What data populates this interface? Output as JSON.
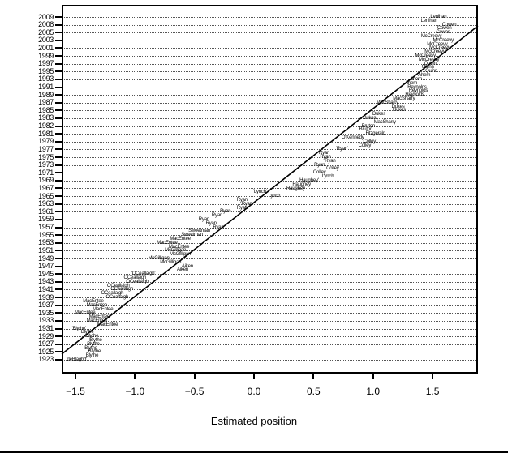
{
  "chart_data": {
    "type": "scatter",
    "title": "",
    "xlabel": "Estimated position",
    "ylabel": "",
    "x_range": [
      -1.65,
      1.9
    ],
    "grid": "dotted-horizontal",
    "x_tick_values": [
      -1.5,
      -1.0,
      -0.5,
      0.0,
      0.5,
      1.0,
      1.5
    ],
    "x_tick_labels": [
      "−1.5",
      "−1.0",
      "−0.5",
      "0.0",
      "0.5",
      "1.0",
      "1.5"
    ],
    "y_axis_years_top_to_bottom": [
      "2009",
      "2008",
      "2005",
      "2003",
      "2001",
      "1999",
      "1997",
      "1995",
      "1993",
      "1991",
      "1989",
      "1987",
      "1985",
      "1983",
      "1982",
      "1981",
      "1979",
      "1977",
      "1975",
      "1973",
      "1971",
      "1969",
      "1967",
      "1965",
      "1963",
      "1961",
      "1959",
      "1957",
      "1955",
      "1953",
      "1951",
      "1949",
      "1947",
      "1945",
      "1943",
      "1941",
      "1939",
      "1937",
      "1935",
      "1933",
      "1931",
      "1929",
      "1927",
      "1925",
      "1923"
    ],
    "point_marker": "text-label-only",
    "points_bottom_to_top": [
      {
        "row": 0,
        "year": 1923,
        "label": "'deBlaghd'",
        "x": -1.49
      },
      {
        "row": 1,
        "year": 1924,
        "label": "Blythe",
        "x": -1.36
      },
      {
        "row": 2,
        "year": 1925,
        "label": "Blythe",
        "x": -1.34
      },
      {
        "row": 3,
        "year": 1926,
        "label": "Blythe",
        "x": -1.37
      },
      {
        "row": 4,
        "year": 1927,
        "label": "Blythe",
        "x": -1.35
      },
      {
        "row": 5,
        "year": 1928,
        "label": "Blythe",
        "x": -1.33
      },
      {
        "row": 6,
        "year": 1929,
        "label": "Blythe",
        "x": -1.36
      },
      {
        "row": 7,
        "year": 1930,
        "label": "Blythe",
        "x": -1.4
      },
      {
        "row": 8,
        "year": 1931,
        "label": "'Blythe'",
        "x": -1.47
      },
      {
        "row": 9,
        "year": 1932,
        "label": "MacEntee",
        "x": -1.23
      },
      {
        "row": 10,
        "year": 1933,
        "label": "MacEntee",
        "x": -1.32
      },
      {
        "row": 11,
        "year": 1934,
        "label": "MacEntee",
        "x": -1.3
      },
      {
        "row": 12,
        "year": 1935,
        "label": "MacEntee",
        "x": -1.42
      },
      {
        "row": 13,
        "year": 1936,
        "label": "MacEntee",
        "x": -1.27
      },
      {
        "row": 14,
        "year": 1937,
        "label": "MacEntee",
        "x": -1.32
      },
      {
        "row": 15,
        "year": 1938,
        "label": "MacEntee",
        "x": -1.35
      },
      {
        "row": 16,
        "year": 1939,
        "label": "OCeallaigh",
        "x": -1.15
      },
      {
        "row": 17,
        "year": 1940,
        "label": "OCeallaigh",
        "x": -1.19
      },
      {
        "row": 18,
        "year": 1941,
        "label": "OCeallaigh",
        "x": -1.11
      },
      {
        "row": 19,
        "year": 1942,
        "label": "OCeallaigh",
        "x": -1.14
      },
      {
        "row": 20,
        "year": 1943,
        "label": "OCeallaigh",
        "x": -0.98
      },
      {
        "row": 21,
        "year": 1944,
        "label": "OCeallaigh",
        "x": -1.0
      },
      {
        "row": 22,
        "year": 1945,
        "label": "'OCeallaigh'",
        "x": -0.93
      },
      {
        "row": 23,
        "year": 1946,
        "label": "Aiken",
        "x": -0.6
      },
      {
        "row": 24,
        "year": 1947,
        "label": "Aiken",
        "x": -0.56
      },
      {
        "row": 25,
        "year": 1948,
        "label": "McGilligan",
        "x": -0.7
      },
      {
        "row": 26,
        "year": 1949,
        "label": "McGilligan",
        "x": -0.8
      },
      {
        "row": 27,
        "year": 1950,
        "label": "McGilligan",
        "x": -0.62
      },
      {
        "row": 28,
        "year": 1951,
        "label": "McGilligan",
        "x": -0.66
      },
      {
        "row": 29,
        "year": 1952,
        "label": "MacEntee",
        "x": -0.63
      },
      {
        "row": 30,
        "year": 1953,
        "label": "MacEntee",
        "x": -0.73
      },
      {
        "row": 31,
        "year": 1954,
        "label": "MacEntee",
        "x": -0.62
      },
      {
        "row": 32,
        "year": 1955,
        "label": "Sweetman",
        "x": -0.52
      },
      {
        "row": 33,
        "year": 1956,
        "label": "'Sweetman'",
        "x": -0.46
      },
      {
        "row": 34,
        "year": 1957,
        "label": "Ryan",
        "x": -0.3
      },
      {
        "row": 35,
        "year": 1958,
        "label": "Ryan",
        "x": -0.36
      },
      {
        "row": 36,
        "year": 1959,
        "label": "Ryan",
        "x": -0.42
      },
      {
        "row": 37,
        "year": 1960,
        "label": "Ryan",
        "x": -0.31
      },
      {
        "row": 38,
        "year": 1961,
        "label": "Ryan",
        "x": -0.24
      },
      {
        "row": 39,
        "year": 1962,
        "label": "Ryan",
        "x": -0.1
      },
      {
        "row": 40,
        "year": 1963,
        "label": "Ryan",
        "x": -0.06
      },
      {
        "row": 41,
        "year": 1964,
        "label": "Ryan",
        "x": -0.1
      },
      {
        "row": 42,
        "year": 1965,
        "label": "Lynch",
        "x": 0.17
      },
      {
        "row": 43,
        "year": 1966,
        "label": "'Lynch'",
        "x": 0.05
      },
      {
        "row": 44,
        "year": 1967,
        "label": "Haughey",
        "x": 0.35
      },
      {
        "row": 45,
        "year": 1968,
        "label": "Haughey",
        "x": 0.4
      },
      {
        "row": 46,
        "year": 1969,
        "label": "'Haughey'",
        "x": 0.46
      },
      {
        "row": 47,
        "year": 1970,
        "label": "Lynch",
        "x": 0.62
      },
      {
        "row": 48,
        "year": 1971,
        "label": "Colley",
        "x": 0.55
      },
      {
        "row": 49,
        "year": 1972,
        "label": "Colley",
        "x": 0.66
      },
      {
        "row": 50,
        "year": 1973,
        "label": "Ryan",
        "x": 0.55
      },
      {
        "row": 51,
        "year": 1974,
        "label": "Ryan",
        "x": 0.64
      },
      {
        "row": 52,
        "year": 1975,
        "label": "Ryan",
        "x": 0.6
      },
      {
        "row": 53,
        "year": 1976,
        "label": "Ryan",
        "x": 0.59
      },
      {
        "row": 54,
        "year": 1977,
        "label": "'Ryan'",
        "x": 0.74
      },
      {
        "row": 55,
        "year": 1978,
        "label": "Colley",
        "x": 0.93
      },
      {
        "row": 56,
        "year": 1979,
        "label": "Colley",
        "x": 0.97
      },
      {
        "row": 57,
        "year": 1980,
        "label": "O'Kennedy",
        "x": 0.83
      },
      {
        "row": 58,
        "year": 1981,
        "label": "Fitzgerald",
        "x": 1.02
      },
      {
        "row": 59,
        "year": 1981,
        "label": "Bruton",
        "x": 0.94
      },
      {
        "row": 60,
        "year": 1982,
        "label": "Bruton",
        "x": 0.96
      },
      {
        "row": 61,
        "year": 1982,
        "label": "MacSharry",
        "x": 1.1
      },
      {
        "row": 62,
        "year": 1983,
        "label": "Dukes",
        "x": 0.97
      },
      {
        "row": 63,
        "year": 1984,
        "label": "Dukes",
        "x": 1.05
      },
      {
        "row": 64,
        "year": 1985,
        "label": "Dukes",
        "x": 1.22
      },
      {
        "row": 65,
        "year": 1986,
        "label": "Dukes",
        "x": 1.21
      },
      {
        "row": 66,
        "year": 1987,
        "label": "MacSharry",
        "x": 1.12
      },
      {
        "row": 67,
        "year": 1988,
        "label": "MacSharry",
        "x": 1.26
      },
      {
        "row": 68,
        "year": 1989,
        "label": "Reynolds",
        "x": 1.35
      },
      {
        "row": 69,
        "year": 1990,
        "label": "Reynolds",
        "x": 1.38
      },
      {
        "row": 70,
        "year": 1991,
        "label": "Reynolds",
        "x": 1.37
      },
      {
        "row": 71,
        "year": 1992,
        "label": "Ahern",
        "x": 1.32
      },
      {
        "row": 72,
        "year": 1993,
        "label": "Ahern",
        "x": 1.36
      },
      {
        "row": 73,
        "year": 1994,
        "label": "Ahern",
        "x": 1.43
      },
      {
        "row": 74,
        "year": 1995,
        "label": "Quinn",
        "x": 1.49
      },
      {
        "row": 75,
        "year": 1996,
        "label": "Quinn",
        "x": 1.46
      },
      {
        "row": 76,
        "year": 1997,
        "label": "Quinn",
        "x": 1.48
      },
      {
        "row": 77,
        "year": 1998,
        "label": "McCreevy",
        "x": 1.47
      },
      {
        "row": 78,
        "year": 1999,
        "label": "McCreevy",
        "x": 1.44
      },
      {
        "row": 79,
        "year": 2000,
        "label": "McCreevy",
        "x": 1.52
      },
      {
        "row": 80,
        "year": 2001,
        "label": "McCreevy",
        "x": 1.56
      },
      {
        "row": 81,
        "year": 2002,
        "label": "McCreevy",
        "x": 1.54
      },
      {
        "row": 82,
        "year": 2003,
        "label": "McCreevy",
        "x": 1.59
      },
      {
        "row": 83,
        "year": 2004,
        "label": "McCreevy",
        "x": 1.49
      },
      {
        "row": 84,
        "year": 2005,
        "label": "Cowen",
        "x": 1.59
      },
      {
        "row": 85,
        "year": 2006,
        "label": "Cowen",
        "x": 1.6
      },
      {
        "row": 86,
        "year": 2008,
        "label": "Cowen",
        "x": 1.64
      },
      {
        "row": 87,
        "year": 2008,
        "label": "Lenihan",
        "x": 1.47
      },
      {
        "row": 88,
        "year": 2009,
        "label": "Lenihan",
        "x": 1.55
      }
    ],
    "fit_line": {
      "v1": -1.615,
      "row1": 1.46,
      "v2": 1.881,
      "row2": 85.7
    },
    "legend": "none",
    "colors": {
      "foreground": "#000000",
      "background": "#ffffff",
      "gridline": "#555555"
    }
  }
}
